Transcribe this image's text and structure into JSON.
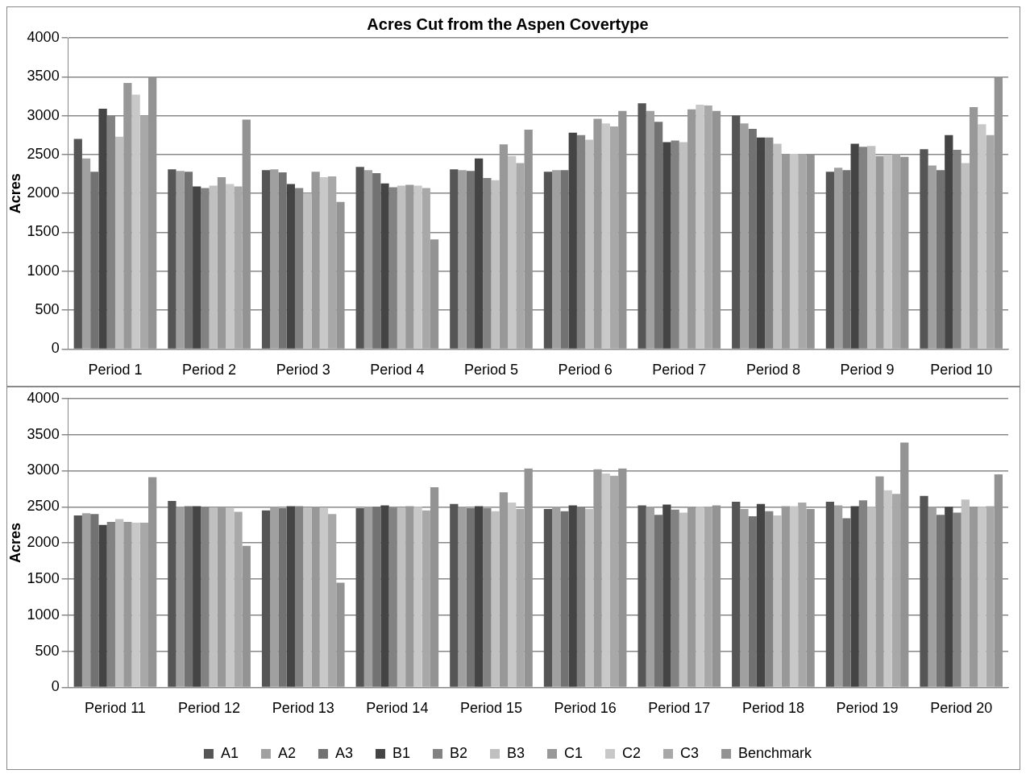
{
  "chart_data": [
    {
      "type": "bar",
      "title": "Acres Cut from the Aspen Covertype",
      "ylabel": "Acres",
      "categories": [
        "Period 1",
        "Period 2",
        "Period 3",
        "Period 4",
        "Period 5",
        "Period 6",
        "Period 7",
        "Period 8",
        "Period 9",
        "Period 10"
      ],
      "ylim": [
        0,
        4000
      ],
      "yticks": [
        0,
        500,
        1000,
        1500,
        2000,
        2500,
        3000,
        3500,
        4000
      ],
      "grid": "y",
      "legend": false,
      "series": [
        {
          "color": "#555555",
          "values": [
            2700,
            2310,
            2300,
            2340,
            2310,
            2280,
            3160,
            3000,
            2280,
            2570
          ]
        },
        {
          "color": "#a0a0a0",
          "values": [
            2450,
            2290,
            2310,
            2300,
            2300,
            2300,
            3060,
            2900,
            2330,
            2360
          ]
        },
        {
          "color": "#727272",
          "values": [
            2280,
            2280,
            2270,
            2260,
            2290,
            2300,
            2920,
            2830,
            2300,
            2300
          ]
        },
        {
          "color": "#444444",
          "values": [
            3090,
            2090,
            2120,
            2130,
            2450,
            2780,
            2660,
            2720,
            2640,
            2750
          ]
        },
        {
          "color": "#828282",
          "values": [
            3000,
            2070,
            2070,
            2080,
            2200,
            2750,
            2680,
            2720,
            2600,
            2560
          ]
        },
        {
          "color": "#c0c0c0",
          "values": [
            2730,
            2100,
            2000,
            2100,
            2170,
            2690,
            2660,
            2640,
            2610,
            2390
          ]
        },
        {
          "color": "#989898",
          "values": [
            3420,
            2210,
            2280,
            2110,
            2630,
            2960,
            3080,
            2510,
            2480,
            3110
          ]
        },
        {
          "color": "#c8c8c8",
          "values": [
            3270,
            2120,
            2210,
            2100,
            2480,
            2900,
            3140,
            2510,
            2500,
            2890
          ]
        },
        {
          "color": "#a8a8a8",
          "values": [
            3000,
            2090,
            2220,
            2070,
            2390,
            2860,
            3130,
            2510,
            2510,
            2750
          ]
        },
        {
          "color": "#939393",
          "values": [
            3500,
            2950,
            1890,
            1410,
            2820,
            3060,
            3060,
            2510,
            2470,
            3500
          ]
        }
      ]
    },
    {
      "type": "bar",
      "ylabel": "Acres",
      "categories": [
        "Period 11",
        "Period 12",
        "Period 13",
        "Period 14",
        "Period 15",
        "Period 16",
        "Period 17",
        "Period 18",
        "Period 19",
        "Period 20"
      ],
      "ylim": [
        0,
        4000
      ],
      "yticks": [
        0,
        500,
        1000,
        1500,
        2000,
        2500,
        3000,
        3500,
        4000
      ],
      "grid": "y",
      "legend": "bottom",
      "series": [
        {
          "name": "A1",
          "color": "#555555",
          "values": [
            2380,
            2580,
            2450,
            2480,
            2540,
            2470,
            2520,
            2570,
            2570,
            2650
          ]
        },
        {
          "name": "A2",
          "color": "#a0a0a0",
          "values": [
            2410,
            2500,
            2500,
            2500,
            2500,
            2500,
            2500,
            2470,
            2520,
            2500
          ]
        },
        {
          "name": "A3",
          "color": "#727272",
          "values": [
            2400,
            2510,
            2480,
            2500,
            2480,
            2440,
            2390,
            2370,
            2340,
            2390
          ]
        },
        {
          "name": "B1",
          "color": "#444444",
          "values": [
            2250,
            2510,
            2510,
            2520,
            2510,
            2520,
            2530,
            2540,
            2510,
            2500
          ]
        },
        {
          "name": "B2",
          "color": "#828282",
          "values": [
            2290,
            2500,
            2510,
            2490,
            2480,
            2500,
            2460,
            2440,
            2590,
            2420
          ]
        },
        {
          "name": "B3",
          "color": "#c0c0c0",
          "values": [
            2330,
            2490,
            2490,
            2480,
            2440,
            2470,
            2420,
            2380,
            2500,
            2600
          ]
        },
        {
          "name": "C1",
          "color": "#989898",
          "values": [
            2290,
            2490,
            2500,
            2510,
            2700,
            3020,
            2500,
            2510,
            2920,
            2500
          ]
        },
        {
          "name": "C2",
          "color": "#c8c8c8",
          "values": [
            2280,
            2490,
            2490,
            2500,
            2560,
            2960,
            2500,
            2510,
            2730,
            2500
          ]
        },
        {
          "name": "C3",
          "color": "#a8a8a8",
          "values": [
            2280,
            2430,
            2400,
            2450,
            2470,
            2930,
            2500,
            2560,
            2680,
            2510
          ]
        },
        {
          "name": "Benchmark",
          "color": "#939393",
          "values": [
            2910,
            1960,
            1450,
            2770,
            3030,
            3030,
            2520,
            2470,
            3390,
            2950
          ]
        }
      ]
    }
  ]
}
